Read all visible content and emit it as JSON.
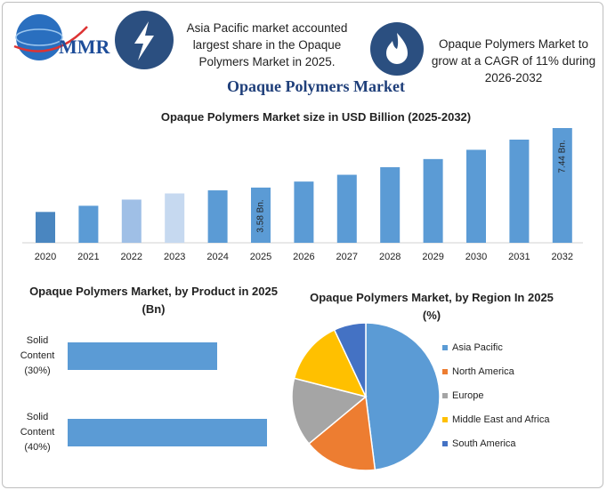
{
  "header": {
    "logo": "MMR",
    "facts": [
      "Asia Pacific market accounted largest share in the Opaque Polymers Market in 2025.",
      "Opaque Polymers Market to grow at a CAGR of 11% during 2026-2032"
    ],
    "title": "Opaque Polymers Market"
  },
  "chart_data": [
    {
      "type": "bar",
      "title": "Opaque Polymers Market size in USD Billion (2025-2032)",
      "categories": [
        "2020",
        "2021",
        "2022",
        "2023",
        "2024",
        "2025",
        "2026",
        "2027",
        "2028",
        "2029",
        "2030",
        "2031",
        "2032"
      ],
      "values": [
        2.0,
        2.4,
        2.8,
        3.2,
        3.4,
        3.58,
        3.97,
        4.41,
        4.9,
        5.43,
        6.03,
        6.69,
        7.44
      ],
      "value_labels": [
        null,
        null,
        null,
        null,
        null,
        "3.58 Bn.",
        null,
        null,
        null,
        null,
        null,
        null,
        "7.44 Bn."
      ],
      "colors": [
        "#4a86c0",
        "#5b9bd5",
        "#9fbfe6",
        "#c6d9f0",
        "#5b9bd5",
        "#5b9bd5",
        "#5b9bd5",
        "#5b9bd5",
        "#5b9bd5",
        "#5b9bd5",
        "#5b9bd5",
        "#5b9bd5",
        "#5b9bd5"
      ]
    },
    {
      "type": "hbar",
      "title": "Opaque Polymers Market, by Product in 2025 (Bn)",
      "categories": [
        "Solid Content (30%)",
        "Solid Content (40%)"
      ],
      "values": [
        30,
        40
      ],
      "color": "#5b9bd5"
    },
    {
      "type": "pie",
      "title": "Opaque Polymers Market, by Region In 2025 (%)",
      "series": [
        {
          "name": "Asia Pacific",
          "color": "#5b9bd5",
          "value": 48
        },
        {
          "name": "North America",
          "color": "#ed7d31",
          "value": 16
        },
        {
          "name": "Europe",
          "color": "#a5a5a5",
          "value": 15
        },
        {
          "name": "Middle East and Africa",
          "color": "#ffc000",
          "value": 14
        },
        {
          "name": "South America",
          "color": "#4472c4",
          "value": 7
        }
      ]
    }
  ]
}
